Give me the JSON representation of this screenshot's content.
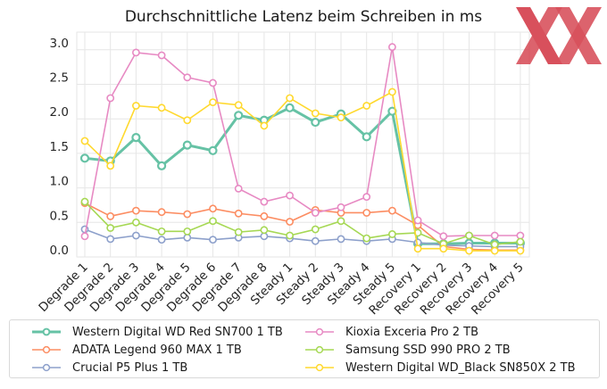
{
  "chart_data": {
    "type": "line",
    "title": "Durchschnittliche Latenz beim Schreiben in ms",
    "xlabel": "",
    "ylabel": "",
    "ylim": [
      0.0,
      3.05
    ],
    "yticks": [
      "0.0",
      "0.5",
      "1.0",
      "1.5",
      "2.0",
      "2.5",
      "3.0"
    ],
    "grid": true,
    "legend_position": "bottom",
    "categories": [
      "Degrade 1",
      "Degrade 2",
      "Degrade 3",
      "Degrade 4",
      "Degrade 5",
      "Degrade 6",
      "Degrade 7",
      "Degrade 8",
      "Steady 1",
      "Steady 2",
      "Steady 3",
      "Steady 4",
      "Steady 5",
      "Recovery 1",
      "Recovery 2",
      "Recovery 3",
      "Recovery 4",
      "Recovery 5"
    ],
    "series": [
      {
        "name": "Western Digital WD Red SN700 1 TB",
        "color": "#66c2a5",
        "emphasis": true,
        "values": [
          1.43,
          1.39,
          1.73,
          1.32,
          1.62,
          1.54,
          2.05,
          1.98,
          2.16,
          1.95,
          2.07,
          1.74,
          2.11,
          0.19,
          0.19,
          0.2,
          0.2,
          0.2
        ]
      },
      {
        "name": "ADATA Legend 960 MAX 1 TB",
        "color": "#fc8d62",
        "emphasis": false,
        "values": [
          0.78,
          0.59,
          0.67,
          0.65,
          0.62,
          0.7,
          0.63,
          0.59,
          0.51,
          0.68,
          0.64,
          0.64,
          0.67,
          0.46,
          0.15,
          0.11,
          0.1,
          0.1
        ]
      },
      {
        "name": "Crucial P5 Plus 1 TB",
        "color": "#8da0cb",
        "emphasis": false,
        "values": [
          0.4,
          0.26,
          0.31,
          0.25,
          0.28,
          0.25,
          0.28,
          0.3,
          0.27,
          0.23,
          0.26,
          0.23,
          0.26,
          0.21,
          0.17,
          0.16,
          0.15,
          0.15
        ]
      },
      {
        "name": "Kioxia Exceria Pro 2 TB",
        "color": "#e78ac3",
        "emphasis": false,
        "values": [
          0.3,
          2.3,
          2.96,
          2.92,
          2.6,
          2.52,
          0.99,
          0.8,
          0.89,
          0.64,
          0.72,
          0.87,
          3.04,
          0.53,
          0.3,
          0.31,
          0.31,
          0.31
        ]
      },
      {
        "name": "Samsung SSD 990 PRO 2 TB",
        "color": "#a6d854",
        "emphasis": false,
        "values": [
          0.8,
          0.42,
          0.5,
          0.37,
          0.37,
          0.52,
          0.36,
          0.39,
          0.31,
          0.4,
          0.52,
          0.27,
          0.33,
          0.35,
          0.19,
          0.31,
          0.18,
          0.22
        ]
      },
      {
        "name": "Western Digital WD_Black SN850X 2 TB",
        "color": "#ffd92f",
        "emphasis": false,
        "values": [
          1.68,
          1.32,
          2.19,
          2.16,
          1.98,
          2.24,
          2.2,
          1.9,
          2.3,
          2.08,
          2.02,
          2.19,
          2.39,
          0.12,
          0.12,
          0.09,
          0.09,
          0.09
        ]
      }
    ]
  },
  "logo": {
    "name": "XX",
    "color": "#d5424f",
    "overlap_color": "#b83a46"
  }
}
